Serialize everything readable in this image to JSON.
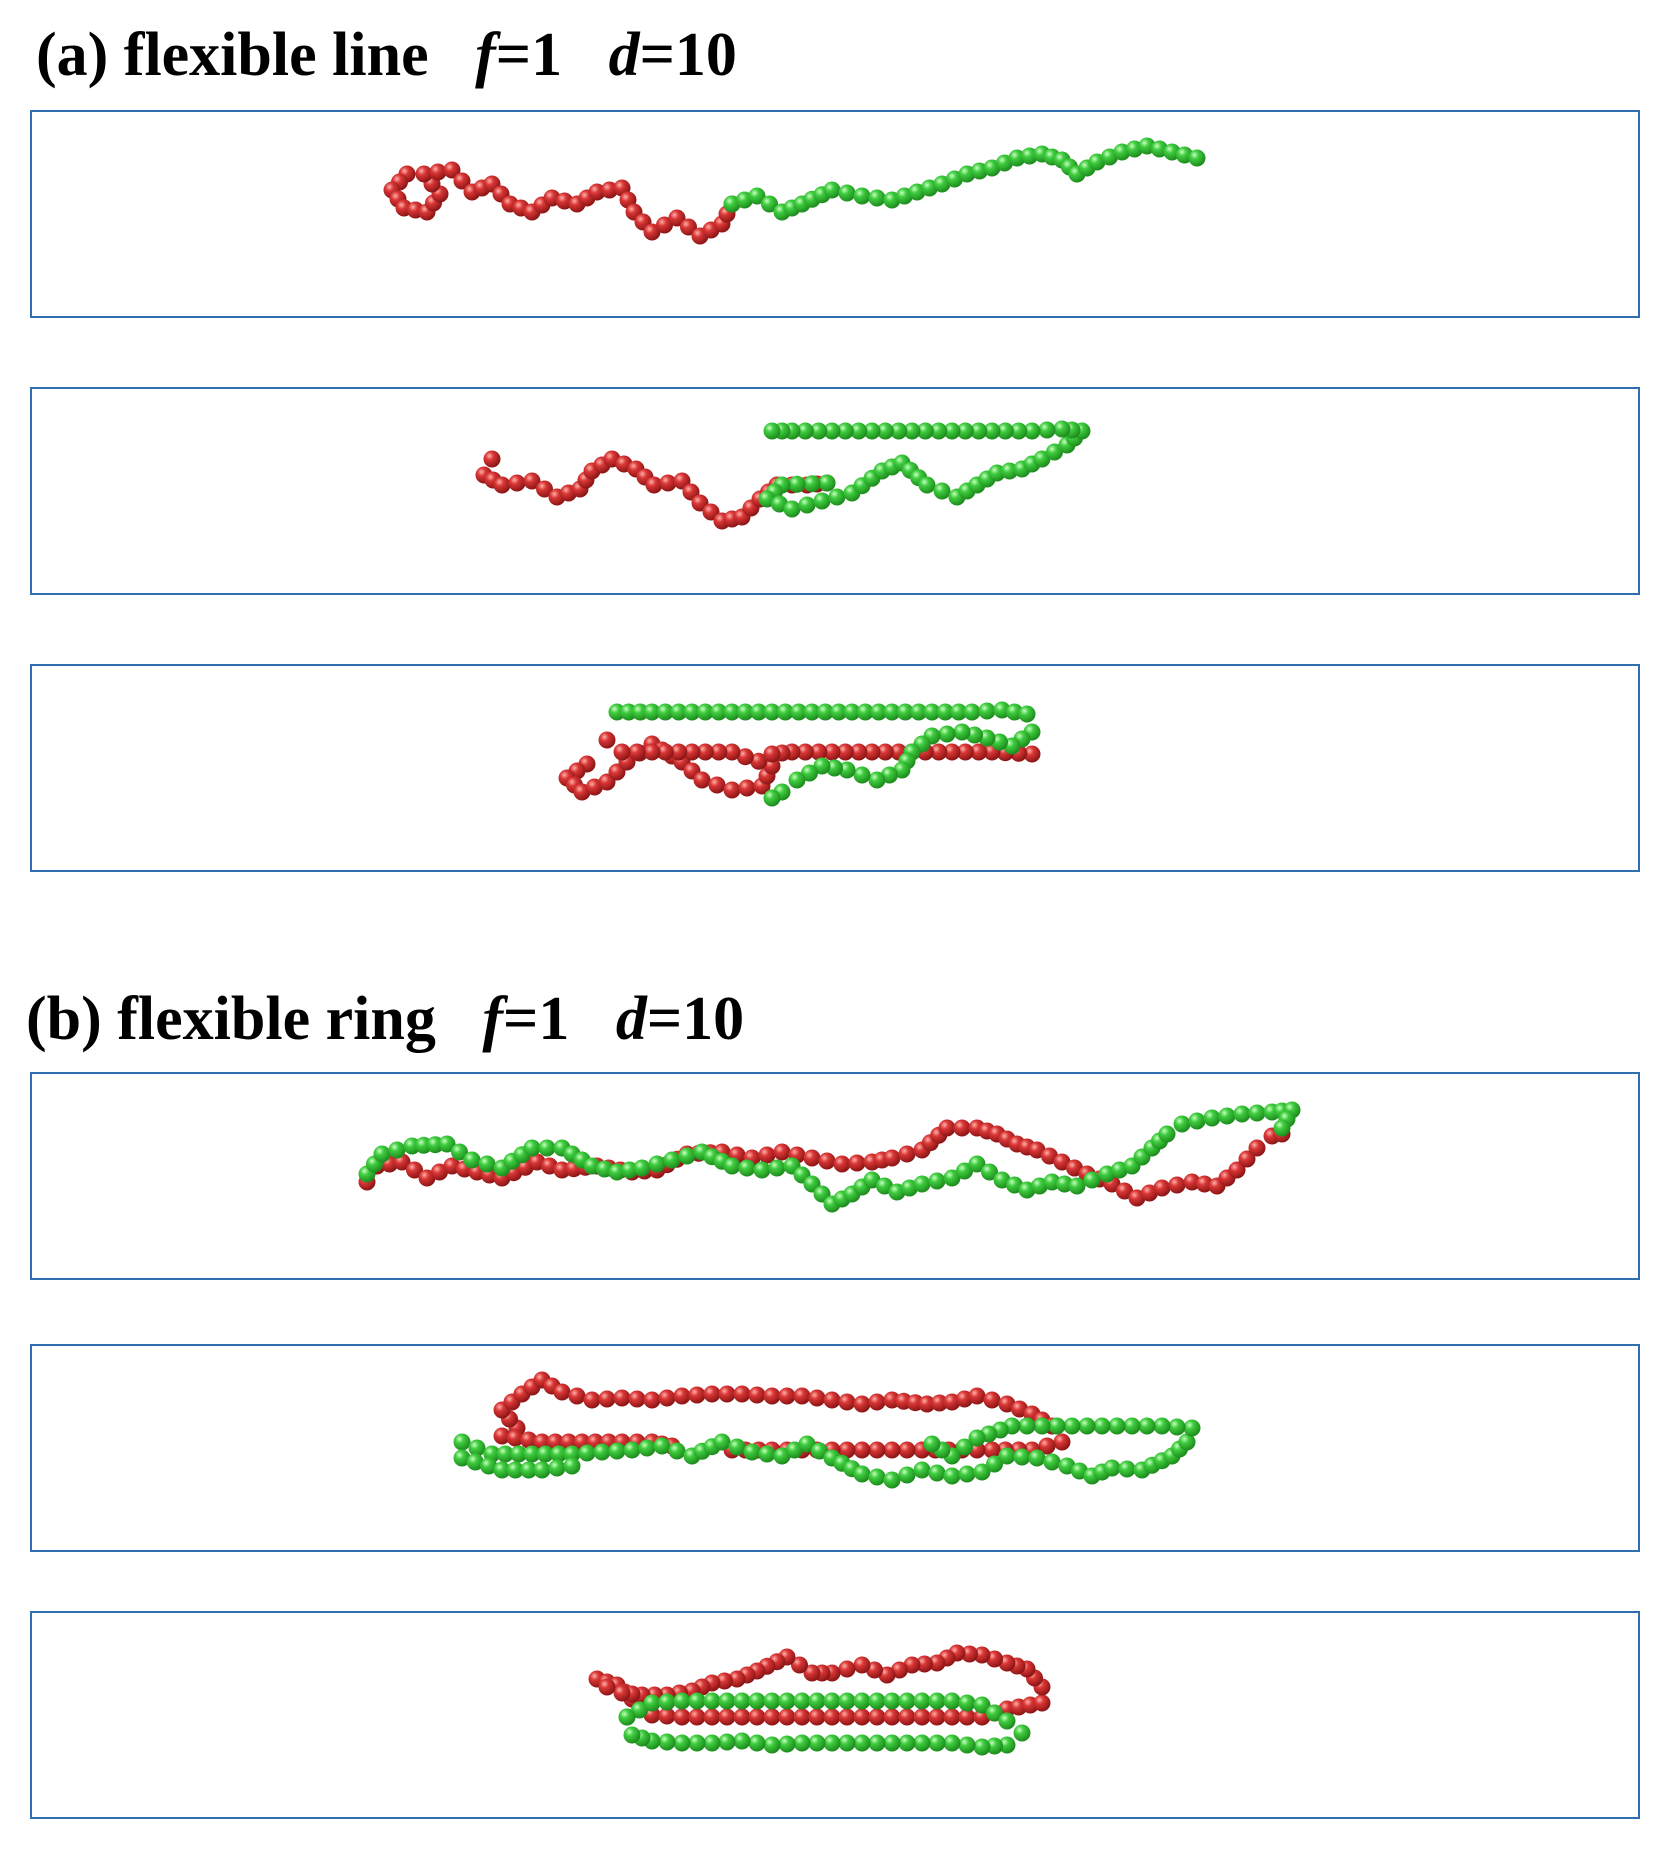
{
  "figure": {
    "sections": [
      {
        "id": "a",
        "title": {
          "prefix": "(a) flexible line",
          "param1_symbol": "f",
          "param1_value": "=1",
          "param2_symbol": "d",
          "param2_value": "=10"
        },
        "chain_type": "line",
        "panel_count": 3
      },
      {
        "id": "b",
        "title": {
          "prefix": "(b) flexible ring",
          "param1_symbol": "f",
          "param1_value": "=1",
          "param2_symbol": "d",
          "param2_value": "=10"
        },
        "chain_type": "ring",
        "panel_count": 3
      }
    ],
    "colors": {
      "red_bead": "#d93636",
      "green_bead": "#3fcc3f",
      "panel_border": "#2f6fb0"
    }
  }
}
